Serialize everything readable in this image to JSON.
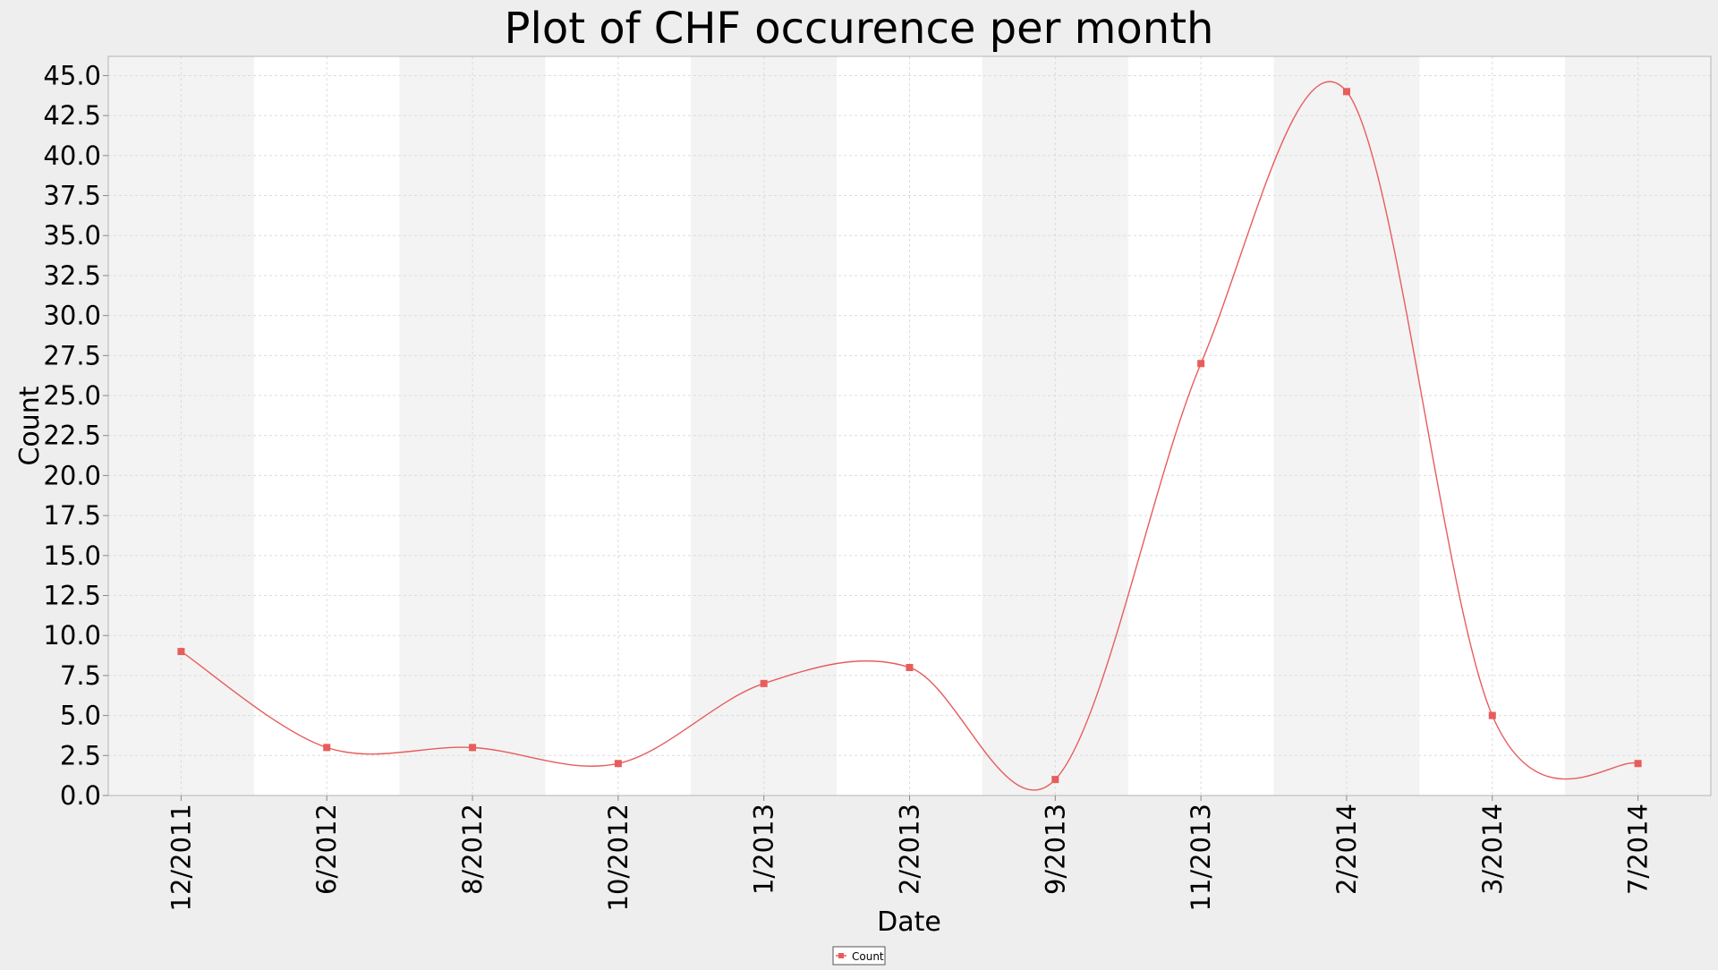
{
  "chart_data": {
    "type": "line",
    "title": "Plot of CHF occurence per month",
    "xlabel": "Date",
    "ylabel": "Count",
    "categories": [
      "12/2011",
      "6/2012",
      "8/2012",
      "10/2012",
      "1/2013",
      "2/2013",
      "9/2013",
      "11/2013",
      "2/2014",
      "3/2014",
      "7/2014"
    ],
    "series": [
      {
        "name": "Count",
        "color": "#e85c5c",
        "values": [
          9,
          3,
          3,
          2,
          7,
          8,
          1,
          27,
          44,
          5,
          2
        ]
      }
    ],
    "ylim": [
      0,
      46.2
    ],
    "yticks": [
      "0.0",
      "2.5",
      "5.0",
      "7.5",
      "10.0",
      "12.5",
      "15.0",
      "17.5",
      "20.0",
      "22.5",
      "25.0",
      "27.5",
      "30.0",
      "32.5",
      "35.0",
      "37.5",
      "40.0",
      "42.5",
      "45.0"
    ],
    "line_style": "smoothed spline",
    "grid": true,
    "legend_position": "bottom-center"
  }
}
